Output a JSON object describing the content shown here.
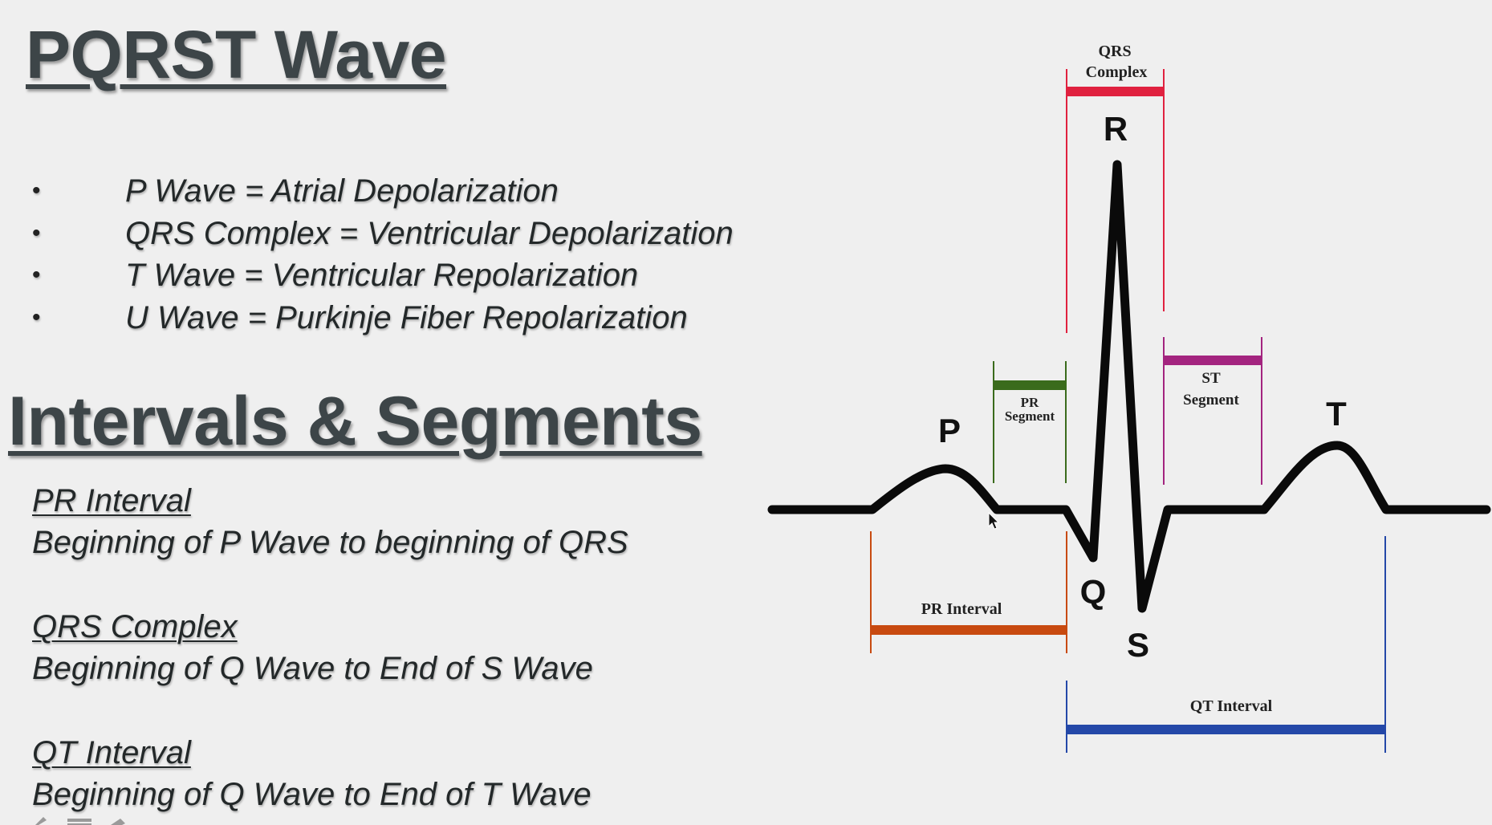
{
  "slide": {
    "title": "PQRST Wave",
    "bullets": [
      {
        "bullet": "•",
        "text": "P Wave = Atrial Depolarization"
      },
      {
        "bullet": "•",
        "text": "QRS Complex = Ventricular Depolarization"
      },
      {
        "bullet": "•",
        "text": "T Wave = Ventricular Repolarization"
      },
      {
        "bullet": "•",
        "text": "U Wave = Purkinje Fiber Repolarization"
      }
    ],
    "section_title": "Intervals & Segments",
    "definitions": [
      {
        "term": "PR Interval",
        "description": "Beginning of P Wave to beginning of QRS"
      },
      {
        "term": "QRS Complex",
        "description": "Beginning of Q Wave to End of S Wave"
      },
      {
        "term": "QT Interval",
        "description": "Beginning of Q Wave to End of T Wave"
      }
    ]
  },
  "diagram": {
    "wave_labels": {
      "p": "P",
      "q": "Q",
      "r": "R",
      "s": "S",
      "t": "T"
    },
    "qrs_complex": {
      "line1": "QRS",
      "line2": "Complex"
    },
    "pr_segment": {
      "line1": "PR",
      "line2": "Segment"
    },
    "st_segment": {
      "line1": "ST",
      "line2": "Segment"
    },
    "pr_interval": "PR Interval",
    "qt_interval": "QT Interval",
    "colors": {
      "trace": "#0a0a0a",
      "qrs_complex": "#e0213f",
      "pr_segment": "#3a6b1c",
      "st_segment": "#a3247f",
      "pr_interval": "#c84a10",
      "qt_interval": "#2448a8"
    }
  },
  "icons": [
    "mouse-cursor-icon",
    "pen-icon",
    "menu-icon",
    "forward-arrow-icon"
  ]
}
